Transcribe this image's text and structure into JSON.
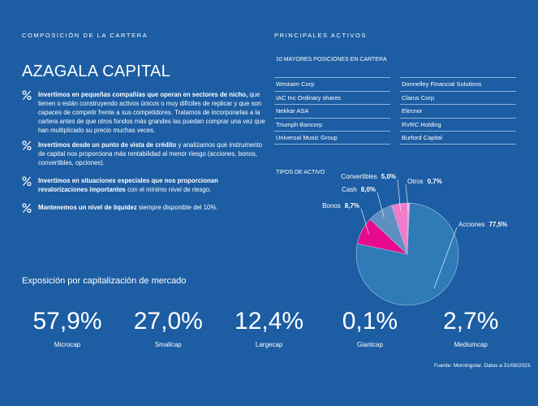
{
  "header": {
    "left": "COMPOSICIÓN DE LA CARTERA",
    "right": "PRINCIPALES ACTIVOS"
  },
  "fund_name": "AZAGALA CAPITAL",
  "bullets": [
    {
      "bold": "Invertimos en pequeñas compañías que operan en sectores de nicho,",
      "text": "que tienen o están construyendo activos únicos o muy difíciles de replicar y que son capaces de competir frente a sus competidores. Tratamos de incorporarlas a la cartera antes de que otros fondos más grandes las puedan comprar una vez que han multiplicado su precio muchas veces."
    },
    {
      "bold": "Invertimos desde un punto de vista de crédito",
      "text": "y analizamos qué instrumento de capital nos proporciona más rentabilidad al menor riesgo (acciones, bonos, convertibles, opciones)."
    },
    {
      "bold": "Invertimos en situaciones especiales que nos proporcionan revalorizaciones importantes",
      "text": "con el mínimo nivel de riesgo."
    },
    {
      "bold": "Mantenemos un nivel de liquidez",
      "text": "siempre disponible del 10%."
    }
  ],
  "top_holdings": {
    "title": "10 MAYORES POSICIONES EN CARTERA",
    "columns": [
      [
        "Westaim Corp",
        "IAC Inc Ordinary shares",
        "Nekkar ASA",
        "Triumph Bancorp",
        "Universal Music Group"
      ],
      [
        "Donnelley Financial Solutions",
        "Clarus Corp",
        "Elecnor",
        "RVRC Holding",
        "Burford Capital"
      ]
    ]
  },
  "chart_data": {
    "type": "pie",
    "title": "TIPOS DE ACTIVO",
    "categories": [
      "Otros",
      "Acciones",
      "Bonos",
      "Cash",
      "Convertibles"
    ],
    "values": [
      0.7,
      77.5,
      8.7,
      8.0,
      5.0
    ],
    "value_labels": [
      "0,7%",
      "77,5%",
      "8,7%",
      "8,0%",
      "5,0%"
    ],
    "colors": [
      "#f6a9dc",
      "#2f7bb8",
      "#e80a8c",
      "#5e8fc0",
      "#f27bcb"
    ]
  },
  "market_cap": {
    "title": "Exposición por capitalización de mercado",
    "items": [
      {
        "value": "57,9%",
        "label": "Microcap"
      },
      {
        "value": "27,0%",
        "label": "Smallcap"
      },
      {
        "value": "12,4%",
        "label": "Largecap"
      },
      {
        "value": "0,1%",
        "label": "Giantcap"
      },
      {
        "value": "2,7%",
        "label": "Mediumcap"
      }
    ]
  },
  "footnote": "Fuente: Morningstar. Datos a 31/08/2023."
}
